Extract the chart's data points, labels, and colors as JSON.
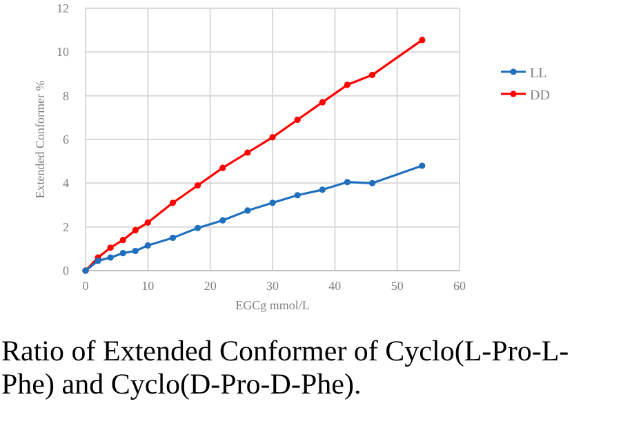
{
  "chart_data": {
    "type": "line",
    "xlabel": "EGCg mmol/L",
    "ylabel": "Extended Conformer %",
    "x": [
      0,
      2,
      4,
      6,
      8,
      10,
      14,
      18,
      22,
      26,
      30,
      34,
      38,
      42,
      46,
      54
    ],
    "series": [
      {
        "name": "LL",
        "color": "#1f6fbf",
        "values": [
          0,
          0.45,
          0.6,
          0.8,
          0.9,
          1.15,
          1.5,
          1.95,
          2.3,
          2.75,
          3.1,
          3.45,
          3.7,
          4.05,
          4.0,
          4.8
        ]
      },
      {
        "name": "DD",
        "color": "#ff0000",
        "values": [
          0,
          0.6,
          1.05,
          1.4,
          1.85,
          2.2,
          3.1,
          3.9,
          4.7,
          5.4,
          6.1,
          6.9,
          7.7,
          8.5,
          8.95,
          10.55
        ]
      }
    ],
    "xlim": [
      0,
      60
    ],
    "xticks": [
      0,
      10,
      20,
      30,
      40,
      50,
      60
    ],
    "ylim": [
      0,
      12
    ],
    "yticks": [
      0,
      2,
      4,
      6,
      8,
      10,
      12
    ],
    "grid": true,
    "legend": "right",
    "marker": "circle",
    "annotations": [
      "Ratio of Extended Conformer of Cyclo(L-Pro-L-Phe) and Cyclo(D-Pro-D-Phe)."
    ]
  }
}
